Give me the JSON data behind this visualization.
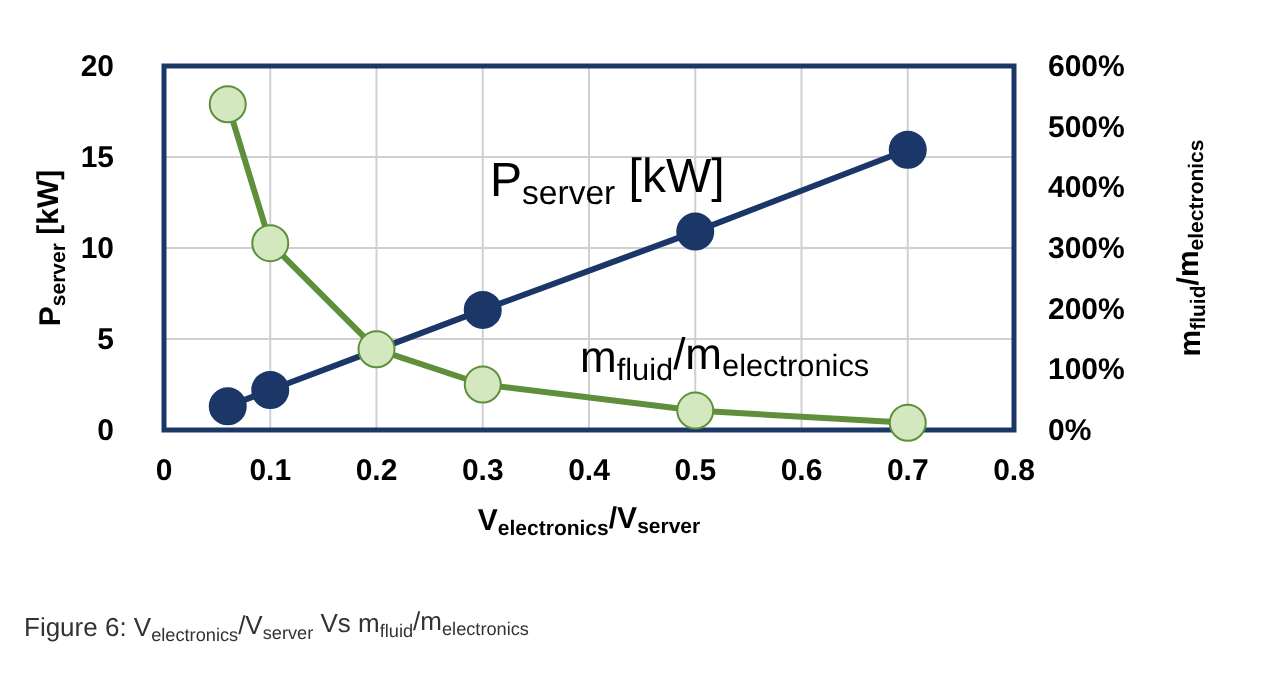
{
  "chart_data": {
    "type": "line",
    "xlabel": "V$_{electronics}$/V$_{server}$",
    "ylabel": "P$_{server}$ [kW]",
    "y2label": "m$_{fluid}$/m$_{electronics}$",
    "x": [
      0.06,
      0.1,
      0.2,
      0.3,
      0.5,
      0.7
    ],
    "series": [
      {
        "name": "P$_{server}$ [kW]",
        "color": "#1b3768",
        "x": [
          0.06,
          0.1,
          0.3,
          0.5,
          0.7
        ],
        "values": [
          1.3,
          2.2,
          6.6,
          10.9,
          15.4
        ]
      },
      {
        "name": "m$_{fluid}$/m$_{electronics}$",
        "color": "#5f8f3a",
        "axis": "y2",
        "values": [
          537,
          308,
          133,
          75,
          32,
          12
        ]
      }
    ],
    "xlim": [
      0,
      0.8
    ],
    "xticks": [
      0,
      0.1,
      0.2,
      0.3,
      0.4,
      0.5,
      0.6,
      0.7,
      0.8
    ],
    "ylim": [
      0,
      20
    ],
    "yticks": [
      0,
      5,
      10,
      15,
      20
    ],
    "y2lim": [
      0,
      600
    ],
    "y2ticks": [
      {
        "value": 0,
        "label": "0%"
      },
      {
        "value": 100,
        "label": "100%"
      },
      {
        "value": 200,
        "label": "200%"
      },
      {
        "value": 300,
        "label": "300%"
      },
      {
        "value": 400,
        "label": "400%"
      },
      {
        "value": 500,
        "label": "500%"
      },
      {
        "value": 600,
        "label": "600%"
      }
    ],
    "grid": true,
    "legend": false,
    "marker": "circle",
    "line_style": "solid",
    "annotations": [
      "Figure 6: V$_{electronics}$/V$_{server}$ Vs m$_{fluid}$/m$_{electronics}$"
    ]
  }
}
